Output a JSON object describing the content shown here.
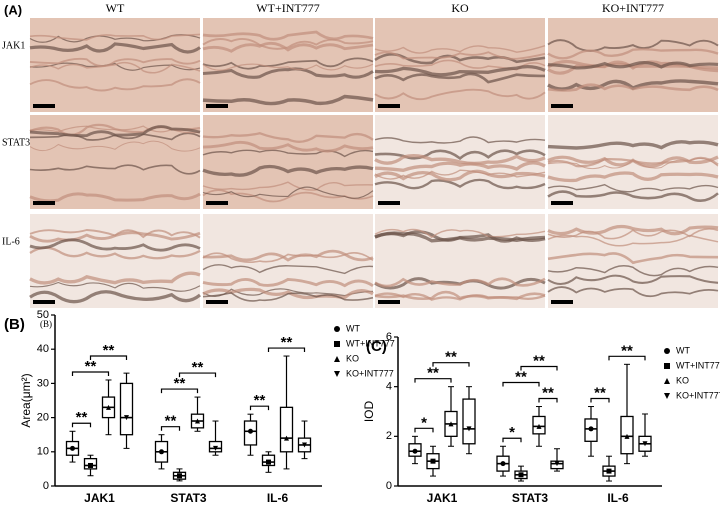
{
  "panel_a": {
    "label": "(A)",
    "columns": [
      "WT",
      "WT+INT777",
      "KO",
      "KO+INT777"
    ],
    "rows": [
      "JAK1",
      "STAT3",
      "IL-6"
    ]
  },
  "chart_data": [
    {
      "type": "box",
      "panel_label": "(B)",
      "inner_label": "(B)",
      "y_label": "Area(μm²)",
      "categories": [
        "JAK1",
        "STAT3",
        "IL-6"
      ],
      "ylim": [
        0,
        50
      ],
      "yticks": [
        0,
        10,
        20,
        30,
        40,
        50
      ],
      "series": [
        {
          "name": "WT",
          "color": "#000000",
          "marker": "circle",
          "min": [
            7,
            5,
            9
          ],
          "q1": [
            9,
            7,
            12
          ],
          "median": [
            11,
            10,
            16
          ],
          "q3": [
            13,
            13,
            19
          ],
          "max": [
            16,
            15,
            21
          ]
        },
        {
          "name": "WT+INT777",
          "color": "#000000",
          "marker": "square",
          "min": [
            3,
            1.5,
            4
          ],
          "q1": [
            5,
            2,
            6
          ],
          "median": [
            6,
            3,
            7
          ],
          "q3": [
            8,
            4,
            9
          ],
          "max": [
            9,
            5,
            10
          ]
        },
        {
          "name": "KO",
          "color": "#000000",
          "marker": "triangle-up",
          "min": [
            15,
            16,
            5
          ],
          "q1": [
            20,
            17,
            10
          ],
          "median": [
            23,
            19,
            14
          ],
          "q3": [
            26,
            21,
            23
          ],
          "max": [
            31,
            26,
            38
          ]
        },
        {
          "name": "KO+INT777",
          "color": "#000000",
          "marker": "triangle-down",
          "min": [
            11,
            9,
            8
          ],
          "q1": [
            15,
            10,
            10
          ],
          "median": [
            20,
            11,
            12
          ],
          "q3": [
            30,
            13,
            14
          ],
          "max": [
            33,
            19,
            19
          ]
        }
      ],
      "annotations": [
        {
          "category": 0,
          "pair": [
            0,
            1
          ],
          "text": "**"
        },
        {
          "category": 0,
          "pair": [
            0,
            2
          ],
          "text": "**"
        },
        {
          "category": 0,
          "pair": [
            1,
            3
          ],
          "text": "**"
        },
        {
          "category": 1,
          "pair": [
            0,
            1
          ],
          "text": "**"
        },
        {
          "category": 1,
          "pair": [
            0,
            2
          ],
          "text": "**"
        },
        {
          "category": 1,
          "pair": [
            1,
            3
          ],
          "text": "**"
        },
        {
          "category": 2,
          "pair": [
            0,
            1
          ],
          "text": "**"
        },
        {
          "category": 2,
          "pair": [
            1,
            3
          ],
          "text": "**"
        }
      ]
    },
    {
      "type": "box",
      "panel_label": "(C)",
      "y_label": "IOD",
      "categories": [
        "JAK1",
        "STAT3",
        "IL-6"
      ],
      "ylim": [
        0,
        6
      ],
      "yticks": [
        0,
        2,
        4,
        6
      ],
      "series": [
        {
          "name": "WT",
          "color": "#000000",
          "marker": "circle",
          "min": [
            0.9,
            0.4,
            1.2
          ],
          "q1": [
            1.2,
            0.6,
            1.8
          ],
          "median": [
            1.4,
            0.9,
            2.3
          ],
          "q3": [
            1.7,
            1.2,
            2.7
          ],
          "max": [
            2.0,
            1.6,
            3.2
          ]
        },
        {
          "name": "WT+INT777",
          "color": "#000000",
          "marker": "square",
          "min": [
            0.4,
            0.2,
            0.2
          ],
          "q1": [
            0.7,
            0.3,
            0.4
          ],
          "median": [
            1.0,
            0.45,
            0.6
          ],
          "q3": [
            1.3,
            0.6,
            0.8
          ],
          "max": [
            1.6,
            0.8,
            1.2
          ]
        },
        {
          "name": "KO",
          "color": "#000000",
          "marker": "triangle-up",
          "min": [
            1.6,
            1.6,
            0.9
          ],
          "q1": [
            2.0,
            2.1,
            1.3
          ],
          "median": [
            2.5,
            2.4,
            2.0
          ],
          "q3": [
            3.0,
            2.8,
            2.8
          ],
          "max": [
            4.0,
            3.2,
            4.9
          ]
        },
        {
          "name": "KO+INT777",
          "color": "#000000",
          "marker": "triangle-down",
          "min": [
            1.3,
            0.6,
            1.2
          ],
          "q1": [
            1.7,
            0.7,
            1.4
          ],
          "median": [
            2.3,
            0.9,
            1.7
          ],
          "q3": [
            3.5,
            1.0,
            2.0
          ],
          "max": [
            4.0,
            1.5,
            2.9
          ]
        }
      ],
      "annotations": [
        {
          "category": 0,
          "pair": [
            0,
            1
          ],
          "text": "*"
        },
        {
          "category": 0,
          "pair": [
            0,
            2
          ],
          "text": "**"
        },
        {
          "category": 0,
          "pair": [
            1,
            3
          ],
          "text": "**"
        },
        {
          "category": 1,
          "pair": [
            0,
            1
          ],
          "text": "*"
        },
        {
          "category": 1,
          "pair": [
            2,
            3
          ],
          "text": "**"
        },
        {
          "category": 1,
          "pair": [
            0,
            2
          ],
          "text": "**"
        },
        {
          "category": 1,
          "pair": [
            1,
            3
          ],
          "text": "**"
        },
        {
          "category": 2,
          "pair": [
            0,
            1
          ],
          "text": "**"
        },
        {
          "category": 2,
          "pair": [
            1,
            3
          ],
          "text": "**"
        }
      ]
    }
  ]
}
